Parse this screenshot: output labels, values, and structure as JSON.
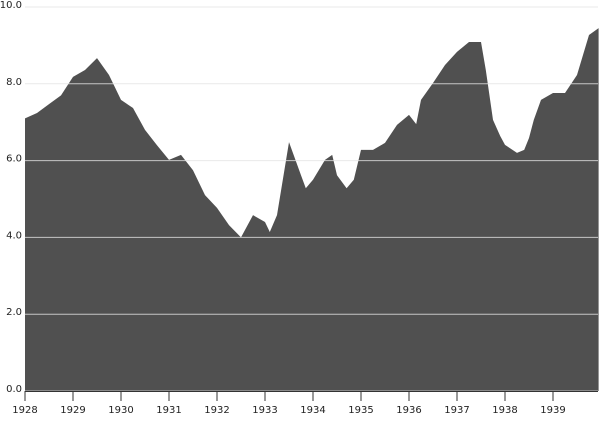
{
  "chart_data": {
    "type": "area",
    "color": "#505050",
    "x": [
      1928.0,
      1928.25,
      1928.5,
      1928.75,
      1929.0,
      1929.25,
      1929.5,
      1929.75,
      1930.0,
      1930.25,
      1930.5,
      1930.75,
      1931.0,
      1931.25,
      1931.5,
      1931.75,
      1932.0,
      1932.25,
      1932.5,
      1932.75,
      1933.0,
      1933.1,
      1933.25,
      1933.5,
      1933.75,
      1933.85,
      1934.0,
      1934.25,
      1934.4,
      1934.5,
      1934.7,
      1934.85,
      1935.0,
      1935.25,
      1935.5,
      1935.75,
      1936.0,
      1936.15,
      1936.25,
      1936.5,
      1936.75,
      1937.0,
      1937.25,
      1937.5,
      1937.6,
      1937.75,
      1937.9,
      1938.0,
      1938.25,
      1938.4,
      1938.5,
      1938.6,
      1938.75,
      1939.0,
      1939.25,
      1939.5,
      1939.75,
      1939.95
    ],
    "values": [
      7.1,
      7.24,
      7.47,
      7.7,
      8.18,
      8.36,
      8.67,
      8.23,
      7.58,
      7.37,
      6.8,
      6.4,
      6.02,
      6.15,
      5.75,
      5.1,
      4.77,
      4.32,
      4.0,
      4.58,
      4.4,
      4.14,
      4.58,
      6.48,
      5.62,
      5.28,
      5.5,
      6.02,
      6.15,
      5.62,
      5.28,
      5.5,
      6.28,
      6.28,
      6.46,
      6.93,
      7.19,
      6.95,
      7.58,
      8.02,
      8.49,
      8.83,
      9.09,
      9.09,
      8.36,
      7.06,
      6.64,
      6.41,
      6.2,
      6.28,
      6.59,
      7.06,
      7.58,
      7.76,
      7.76,
      8.23,
      9.27,
      9.45
    ],
    "xlim": [
      1928,
      1940
    ],
    "xticks": [
      1928,
      1929,
      1930,
      1931,
      1932,
      1933,
      1934,
      1935,
      1936,
      1937,
      1938,
      1939
    ],
    "ylim": [
      0,
      10
    ],
    "yticks": [
      {
        "value": 0,
        "label": "0.0"
      },
      {
        "value": 2,
        "label": "2.0"
      },
      {
        "value": 4,
        "label": "4.0"
      },
      {
        "value": 6,
        "label": "6.0"
      },
      {
        "value": 8,
        "label": "8.0"
      },
      {
        "value": 10,
        "label": "10.0"
      }
    ],
    "grid": true
  }
}
